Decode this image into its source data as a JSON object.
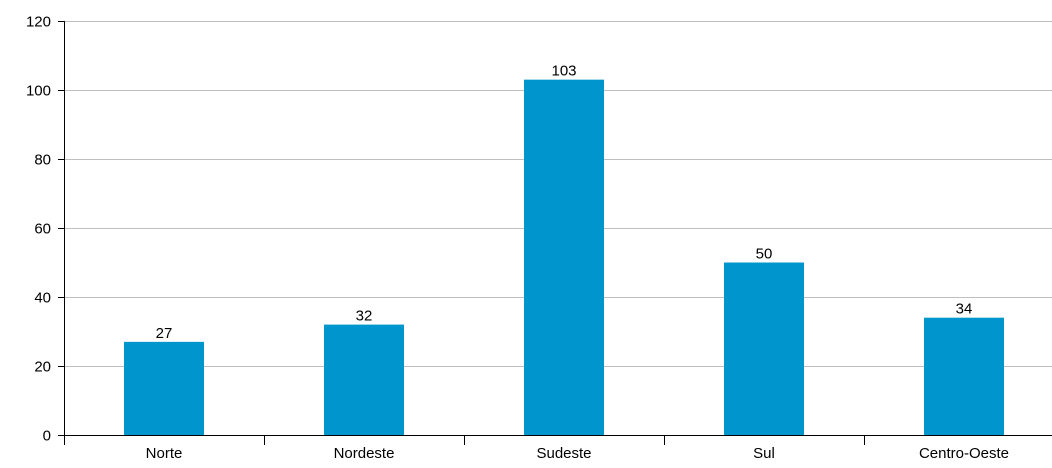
{
  "chart_data": {
    "type": "bar",
    "title": "",
    "xlabel": "",
    "ylabel": "",
    "categories": [
      "Norte",
      "Nordeste",
      "Sudeste",
      "Sul",
      "Centro-Oeste"
    ],
    "values": [
      27,
      32,
      103,
      50,
      34
    ],
    "data_labels": [
      "27",
      "32",
      "103",
      "50",
      "34"
    ],
    "y_ticks": [
      0,
      20,
      40,
      60,
      80,
      100,
      120
    ],
    "y_tick_labels": [
      "0",
      "20",
      "40",
      "60",
      "80",
      "100",
      "120"
    ],
    "ylim": [
      0,
      120
    ],
    "grid": true,
    "legend": "none",
    "colors": {
      "bar": "#0095CC",
      "grid": "#BFBFBF",
      "axis": "#000000",
      "text": "#000000"
    }
  }
}
